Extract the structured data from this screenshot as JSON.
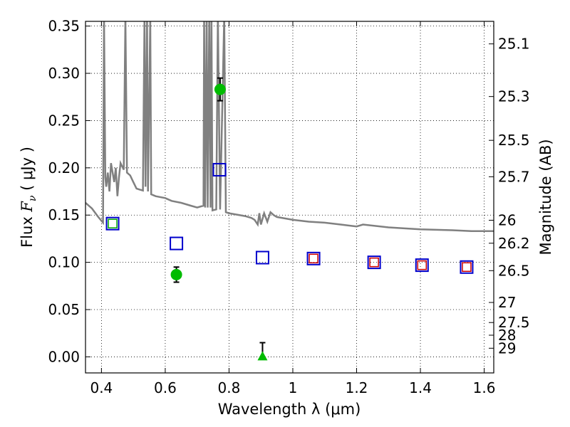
{
  "chart_data": {
    "type": "scatter",
    "xlabel": "Wavelength  λ (μm)",
    "ylabel": "Flux  Fν  ( μJy )",
    "y2label": "Magnitude (AB)",
    "xlim": [
      0.35,
      1.63
    ],
    "ylim": [
      -0.017,
      0.355
    ],
    "grid": true,
    "x_ticks": [
      0.4,
      0.6,
      0.8,
      1.0,
      1.2,
      1.4,
      1.6
    ],
    "x_tick_labels": [
      "0.4",
      "0.6",
      "0.8",
      "1",
      "1.2",
      "1.4",
      "1.6"
    ],
    "y_ticks": [
      0.0,
      0.05,
      0.1,
      0.15,
      0.2,
      0.25,
      0.3,
      0.35
    ],
    "y_tick_labels": [
      "0.00",
      "0.05",
      "0.10",
      "0.15",
      "0.20",
      "0.25",
      "0.30",
      "0.35"
    ],
    "mag_ticks": [
      25.1,
      25.3,
      25.5,
      25.7,
      26,
      26.2,
      26.5,
      27,
      27.5,
      28,
      29
    ],
    "mag_tick_labels": [
      "25.1",
      "25.3",
      "25.5",
      "25.7",
      "26",
      "26.2",
      "26.5",
      "27",
      "27.5",
      "28",
      "29"
    ],
    "colors": {
      "model_line": "#808080",
      "model_square": "#0000cc",
      "blue_square": "#0000cc",
      "red_square": "#cc0000",
      "green_square": "#00aa00",
      "detection": "#00bb00",
      "errorbar": "#000000"
    },
    "model_spectrum": [
      [
        0.35,
        0.163
      ],
      [
        0.37,
        0.157
      ],
      [
        0.39,
        0.148
      ],
      [
        0.405,
        0.142
      ],
      [
        0.408,
        0.36
      ],
      [
        0.412,
        0.19
      ],
      [
        0.415,
        0.18
      ],
      [
        0.42,
        0.195
      ],
      [
        0.425,
        0.175
      ],
      [
        0.43,
        0.205
      ],
      [
        0.44,
        0.185
      ],
      [
        0.445,
        0.2
      ],
      [
        0.45,
        0.17
      ],
      [
        0.455,
        0.19
      ],
      [
        0.46,
        0.205
      ],
      [
        0.47,
        0.198
      ],
      [
        0.475,
        0.36
      ],
      [
        0.48,
        0.195
      ],
      [
        0.49,
        0.192
      ],
      [
        0.5,
        0.185
      ],
      [
        0.51,
        0.178
      ],
      [
        0.52,
        0.177
      ],
      [
        0.53,
        0.176
      ],
      [
        0.535,
        0.36
      ],
      [
        0.538,
        0.18
      ],
      [
        0.543,
        0.36
      ],
      [
        0.546,
        0.175
      ],
      [
        0.553,
        0.36
      ],
      [
        0.556,
        0.172
      ],
      [
        0.57,
        0.17
      ],
      [
        0.6,
        0.168
      ],
      [
        0.62,
        0.165
      ],
      [
        0.65,
        0.163
      ],
      [
        0.68,
        0.16
      ],
      [
        0.7,
        0.158
      ],
      [
        0.72,
        0.16
      ],
      [
        0.722,
        0.36
      ],
      [
        0.725,
        0.158
      ],
      [
        0.73,
        0.36
      ],
      [
        0.733,
        0.158
      ],
      [
        0.738,
        0.36
      ],
      [
        0.742,
        0.158
      ],
      [
        0.745,
        0.36
      ],
      [
        0.748,
        0.155
      ],
      [
        0.76,
        0.156
      ],
      [
        0.765,
        0.36
      ],
      [
        0.772,
        0.156
      ],
      [
        0.785,
        0.36
      ],
      [
        0.79,
        0.153
      ],
      [
        0.8,
        0.152
      ],
      [
        0.85,
        0.149
      ],
      [
        0.87,
        0.147
      ],
      [
        0.88,
        0.145
      ],
      [
        0.89,
        0.14
      ],
      [
        0.895,
        0.152
      ],
      [
        0.9,
        0.14
      ],
      [
        0.91,
        0.152
      ],
      [
        0.92,
        0.143
      ],
      [
        0.93,
        0.153
      ],
      [
        0.94,
        0.15
      ],
      [
        0.95,
        0.148
      ],
      [
        1.0,
        0.145
      ],
      [
        1.05,
        0.143
      ],
      [
        1.1,
        0.142
      ],
      [
        1.15,
        0.14
      ],
      [
        1.2,
        0.138
      ],
      [
        1.22,
        0.14
      ],
      [
        1.3,
        0.137
      ],
      [
        1.4,
        0.135
      ],
      [
        1.5,
        0.134
      ],
      [
        1.56,
        0.133
      ],
      [
        1.63,
        0.133
      ]
    ],
    "model_photometry": [
      {
        "x": 0.435,
        "y": 0.141
      },
      {
        "x": 0.635,
        "y": 0.12
      },
      {
        "x": 0.77,
        "y": 0.198
      },
      {
        "x": 0.905,
        "y": 0.105
      },
      {
        "x": 1.065,
        "y": 0.104
      },
      {
        "x": 1.255,
        "y": 0.1
      },
      {
        "x": 1.405,
        "y": 0.097
      },
      {
        "x": 1.545,
        "y": 0.095
      }
    ],
    "observed_red": [
      {
        "x": 1.065,
        "y": 0.104
      },
      {
        "x": 1.255,
        "y": 0.1
      },
      {
        "x": 1.405,
        "y": 0.097
      },
      {
        "x": 1.545,
        "y": 0.095
      }
    ],
    "observed_green_square": [
      {
        "x": 0.435,
        "y": 0.141
      }
    ],
    "detections": [
      {
        "x": 0.772,
        "y": 0.283,
        "err": 0.012
      },
      {
        "x": 0.635,
        "y": 0.087,
        "err": 0.008
      }
    ],
    "upper_limits": [
      {
        "x": 0.905,
        "y": 0.0,
        "err": 0.015
      }
    ]
  }
}
